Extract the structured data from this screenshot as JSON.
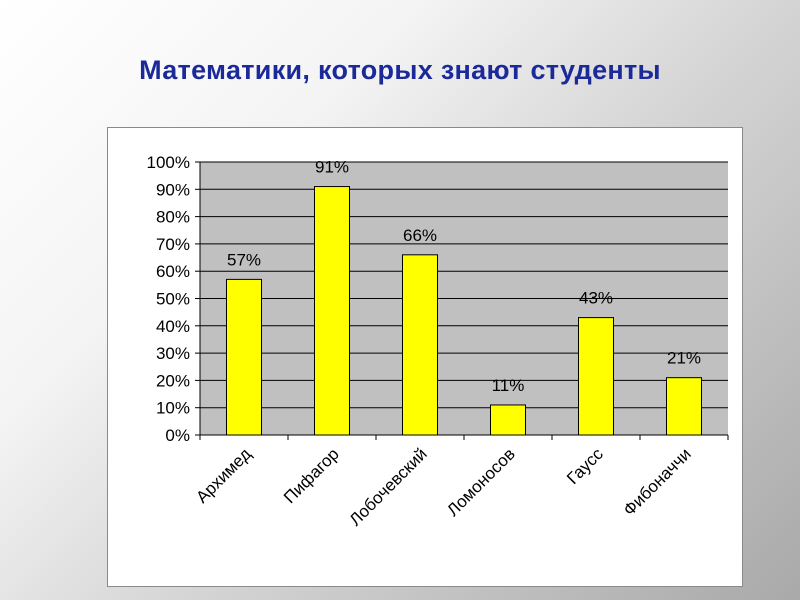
{
  "slide": {
    "title": "Математики, которых знают студенты"
  },
  "colors": {
    "title": "#1c2a99",
    "bar_fill": "#ffff00",
    "bar_stroke": "#000000",
    "plot_background": "#c0c0c0",
    "gridline": "#000000"
  },
  "chart_data": {
    "type": "bar",
    "title": "",
    "xlabel": "",
    "ylabel": "",
    "categories": [
      "Архимед",
      "Пифагор",
      "Лобочевский",
      "Ломоносов",
      "Гаусс",
      "Фибоначчи"
    ],
    "values": [
      57,
      91,
      66,
      11,
      43,
      21
    ],
    "data_labels": [
      "57%",
      "91%",
      "66%",
      "11%",
      "43%",
      "21%"
    ],
    "ylim": [
      0,
      100
    ],
    "yticks": [
      0,
      10,
      20,
      30,
      40,
      50,
      60,
      70,
      80,
      90,
      100
    ],
    "ytick_labels": [
      "0%",
      "10%",
      "20%",
      "30%",
      "40%",
      "50%",
      "60%",
      "70%",
      "80%",
      "90%",
      "100%"
    ],
    "grid": "horizontal",
    "legend": "none",
    "x_label_rotation": "45"
  }
}
